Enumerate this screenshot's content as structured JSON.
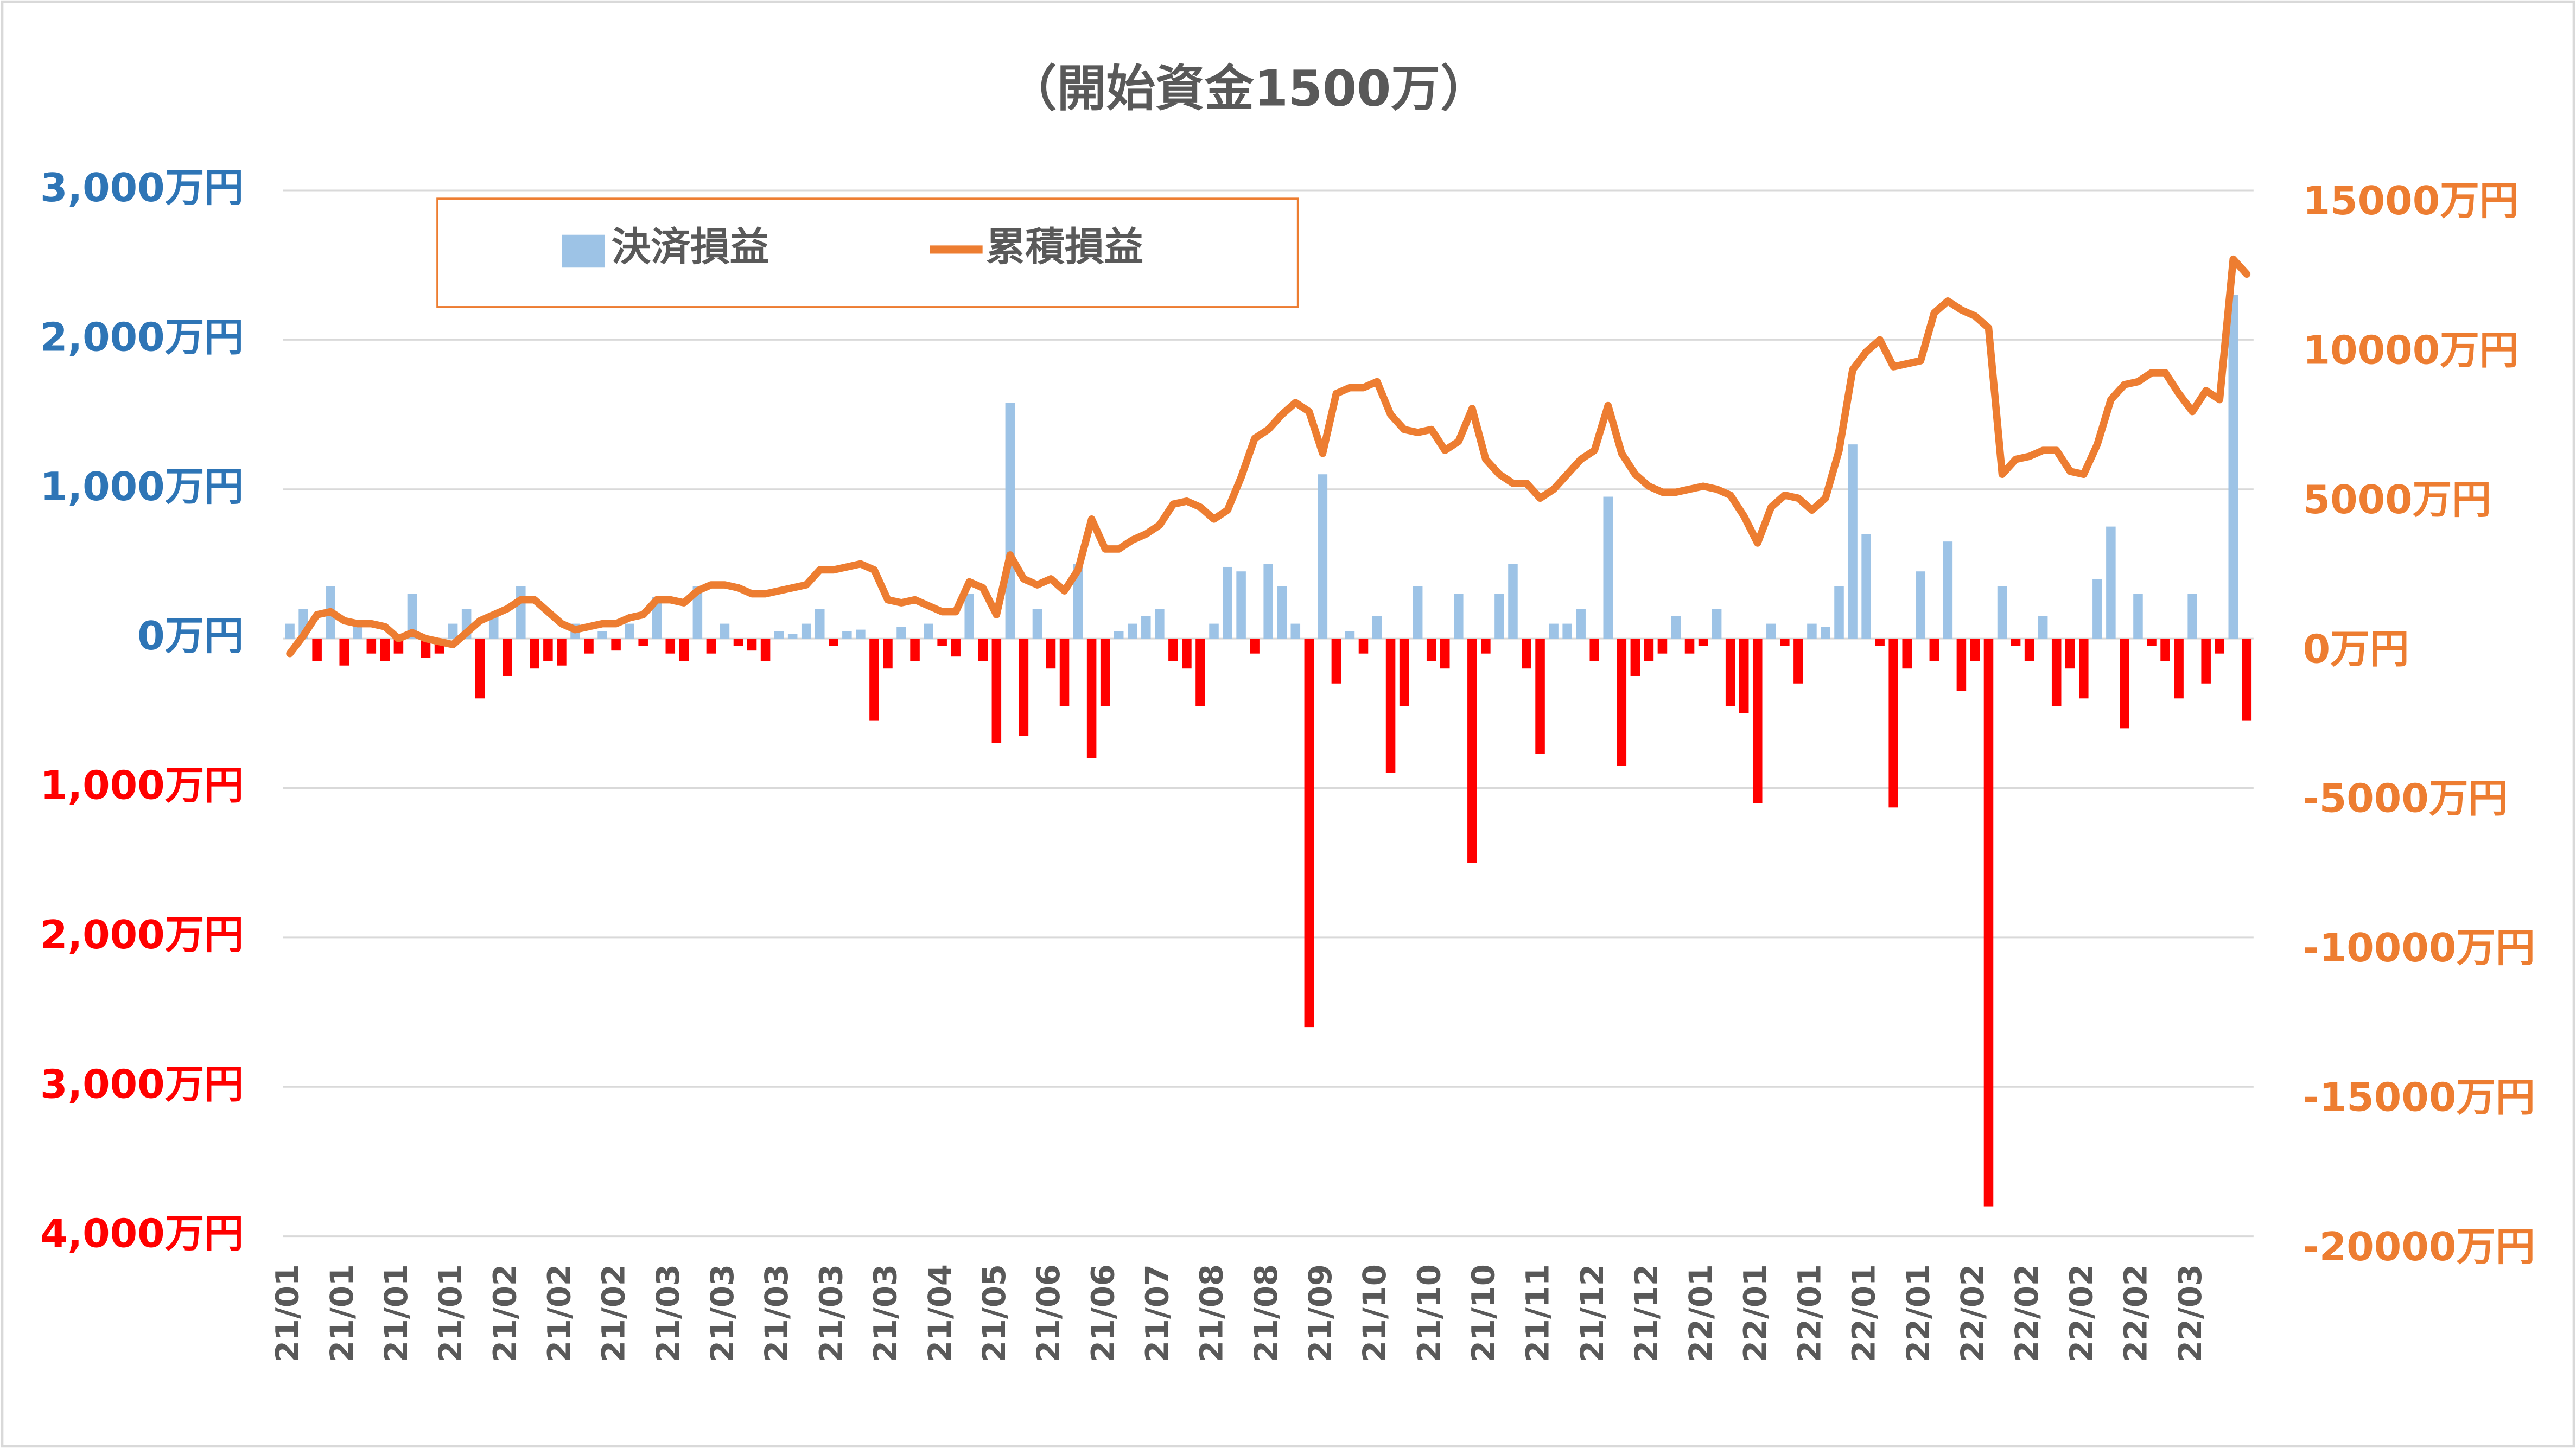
{
  "chart_data": {
    "type": "bar-line",
    "title": "（開始資金1500万）",
    "categories": [
      "21/01",
      null,
      null,
      null,
      "21/01",
      null,
      null,
      null,
      "21/01",
      null,
      null,
      null,
      "21/01",
      null,
      null,
      null,
      "21/02",
      null,
      null,
      null,
      "21/02",
      null,
      null,
      null,
      "21/02",
      null,
      null,
      null,
      "21/03",
      null,
      null,
      null,
      "21/03",
      null,
      null,
      null,
      "21/03",
      null,
      null,
      null,
      "21/03",
      null,
      null,
      null,
      "21/03",
      null,
      null,
      null,
      "21/04",
      null,
      null,
      null,
      "21/05",
      null,
      null,
      null,
      "21/06",
      null,
      null,
      null,
      "21/06",
      null,
      null,
      null,
      "21/07",
      null,
      null,
      null,
      "21/08",
      null,
      null,
      null,
      "21/08",
      null,
      null,
      null,
      "21/09",
      null,
      null,
      null,
      "21/10",
      null,
      null,
      null,
      "21/10",
      null,
      null,
      null,
      "21/10",
      null,
      null,
      null,
      "21/11",
      null,
      null,
      null,
      "21/12",
      null,
      null,
      null,
      "21/12",
      null,
      null,
      null,
      "22/01",
      null,
      null,
      null,
      "22/01",
      null,
      null,
      null,
      "22/01",
      null,
      null,
      null,
      "22/01",
      null,
      null,
      null,
      "22/01",
      null,
      null,
      null,
      "22/02",
      null,
      null,
      null,
      "22/02",
      null,
      null,
      null,
      "22/02",
      null,
      null,
      null,
      "22/02",
      null,
      null,
      null,
      "22/03",
      null,
      null,
      null,
      null
    ],
    "series": [
      {
        "name": "決済損益",
        "color": "#9DC3E6",
        "negative_color": "#FF0000",
        "values": [
          100,
          200,
          -150,
          350,
          -180,
          100,
          -100,
          -150,
          -100,
          300,
          -130,
          -100,
          100,
          200,
          -400,
          150,
          -250,
          350,
          -200,
          -150,
          -180,
          100,
          -100,
          50,
          -80,
          100,
          -50,
          280,
          -100,
          -150,
          350,
          -100,
          100,
          -50,
          -80,
          -150,
          50,
          30,
          100,
          200,
          -50,
          50,
          60,
          -550,
          -200,
          80,
          -150,
          100,
          -50,
          -120,
          300,
          -150,
          -700,
          1580,
          -650,
          200,
          -200,
          -450,
          500,
          -800,
          -450,
          50,
          100,
          150,
          200,
          -150,
          -200,
          -450,
          100,
          480,
          450,
          -100,
          500,
          350,
          100,
          -2600,
          1100,
          -300,
          50,
          -100,
          150,
          -900,
          -450,
          350,
          -150,
          -200,
          300,
          -1500,
          -100,
          300,
          500,
          -200,
          -770,
          100,
          100,
          200,
          -150,
          950,
          -850,
          -250,
          -150,
          -100,
          150,
          -100,
          -50,
          200,
          -450,
          -500,
          -1100,
          100,
          -50,
          -300,
          100,
          80,
          350,
          1300,
          700,
          -50,
          -1130,
          -200,
          450,
          -150,
          650,
          -350,
          -150,
          -3800,
          350,
          -50,
          -150,
          150,
          -450,
          -200,
          -400,
          400,
          750,
          -600,
          300,
          -50,
          -150,
          -400,
          300,
          -300,
          -100,
          2300,
          -550
        ]
      },
      {
        "name": "累積損益",
        "color": "#ED7D31",
        "axis": "y2",
        "values": [
          -500,
          100,
          800,
          900,
          600,
          500,
          500,
          400,
          0,
          200,
          0,
          -100,
          -200,
          200,
          600,
          800,
          1000,
          1300,
          1300,
          900,
          500,
          300,
          400,
          500,
          500,
          700,
          800,
          1300,
          1300,
          1200,
          1600,
          1800,
          1800,
          1700,
          1500,
          1500,
          1600,
          1700,
          1800,
          2300,
          2300,
          2400,
          2500,
          2300,
          1300,
          1200,
          1300,
          1100,
          900,
          900,
          1900,
          1700,
          800,
          2800,
          2000,
          1800,
          2000,
          1600,
          2300,
          4000,
          3000,
          3000,
          3300,
          3500,
          3800,
          4500,
          4600,
          4400,
          4000,
          4300,
          5400,
          6700,
          7000,
          7500,
          7900,
          7600,
          6200,
          8200,
          8400,
          8400,
          8600,
          7500,
          7000,
          6900,
          7000,
          6300,
          6600,
          7700,
          6000,
          5500,
          5200,
          5200,
          4700,
          5000,
          5500,
          6000,
          6300,
          7800,
          6200,
          5500,
          5100,
          4900,
          4900,
          5000,
          5100,
          5000,
          4800,
          4100,
          3200,
          4400,
          4800,
          4700,
          4300,
          4700,
          6300,
          9000,
          9600,
          10000,
          9100,
          9200,
          9300,
          10900,
          11300,
          11000,
          10800,
          10400,
          5500,
          6000,
          6100,
          6300,
          6300,
          5600,
          5500,
          6500,
          8000,
          8500,
          8600,
          8900,
          8900,
          8200,
          7600,
          8300,
          8000,
          12700,
          12200
        ]
      }
    ],
    "ylim": [
      -4000,
      3000
    ],
    "yticks": [
      {
        "value": 3000,
        "label": "3,000万円"
      },
      {
        "value": 2000,
        "label": "2,000万円"
      },
      {
        "value": 1000,
        "label": "1,000万円"
      },
      {
        "value": 0,
        "label": "0万円"
      },
      {
        "value": -1000,
        "label": "1,000万円"
      },
      {
        "value": -2000,
        "label": "2,000万円"
      },
      {
        "value": -3000,
        "label": "3,000万円"
      },
      {
        "value": -4000,
        "label": "4,000万円"
      }
    ],
    "y2lim": [
      -20000,
      15000
    ],
    "y2ticks": [
      {
        "value": 15000,
        "label": "15000万円"
      },
      {
        "value": 10000,
        "label": "10000万円"
      },
      {
        "value": 5000,
        "label": "5000万円"
      },
      {
        "value": 0,
        "label": "0万円"
      },
      {
        "value": -5000,
        "label": "-5000万円"
      },
      {
        "value": -10000,
        "label": "-10000万円"
      },
      {
        "value": -15000,
        "label": "-15000万円"
      },
      {
        "value": -20000,
        "label": "-20000万円"
      }
    ],
    "grid": true,
    "legend": "top-left"
  }
}
